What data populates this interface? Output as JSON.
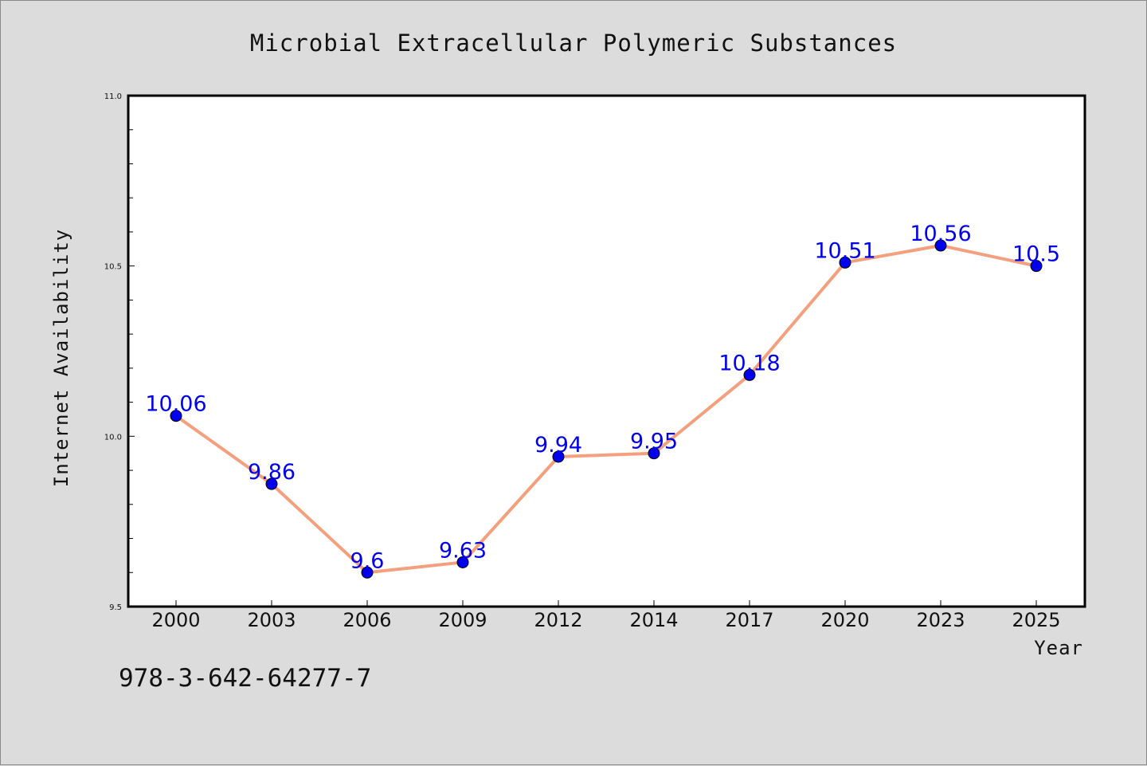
{
  "chart_data": {
    "type": "line",
    "title": "Microbial Extracellular Polymeric Substances",
    "xlabel": "Year",
    "ylabel": "Internet Availability",
    "categories": [
      "2000",
      "2003",
      "2006",
      "2009",
      "2012",
      "2014",
      "2017",
      "2020",
      "2023",
      "2025"
    ],
    "series": [
      {
        "values": [
          10.06,
          9.86,
          9.6,
          9.63,
          9.94,
          9.95,
          10.18,
          10.51,
          10.56,
          10.5
        ],
        "labels": [
          "10.06",
          "9.86",
          "9.6",
          "9.63",
          "9.94",
          "9.95",
          "10.18",
          "10.51",
          "10.56",
          "10.5"
        ]
      }
    ],
    "ylim": [
      9.5,
      11.0
    ],
    "yticks": [
      "9.5",
      "10.0",
      "10.5",
      "11.0"
    ],
    "grid": false,
    "colors": {
      "line": "#f4a07e",
      "marker": "#0000ee",
      "data_label": "#0000ee",
      "background": "#dcdcdc",
      "plot_area": "#ffffff"
    }
  },
  "footer": {
    "isbn": "978-3-642-64277-7"
  }
}
